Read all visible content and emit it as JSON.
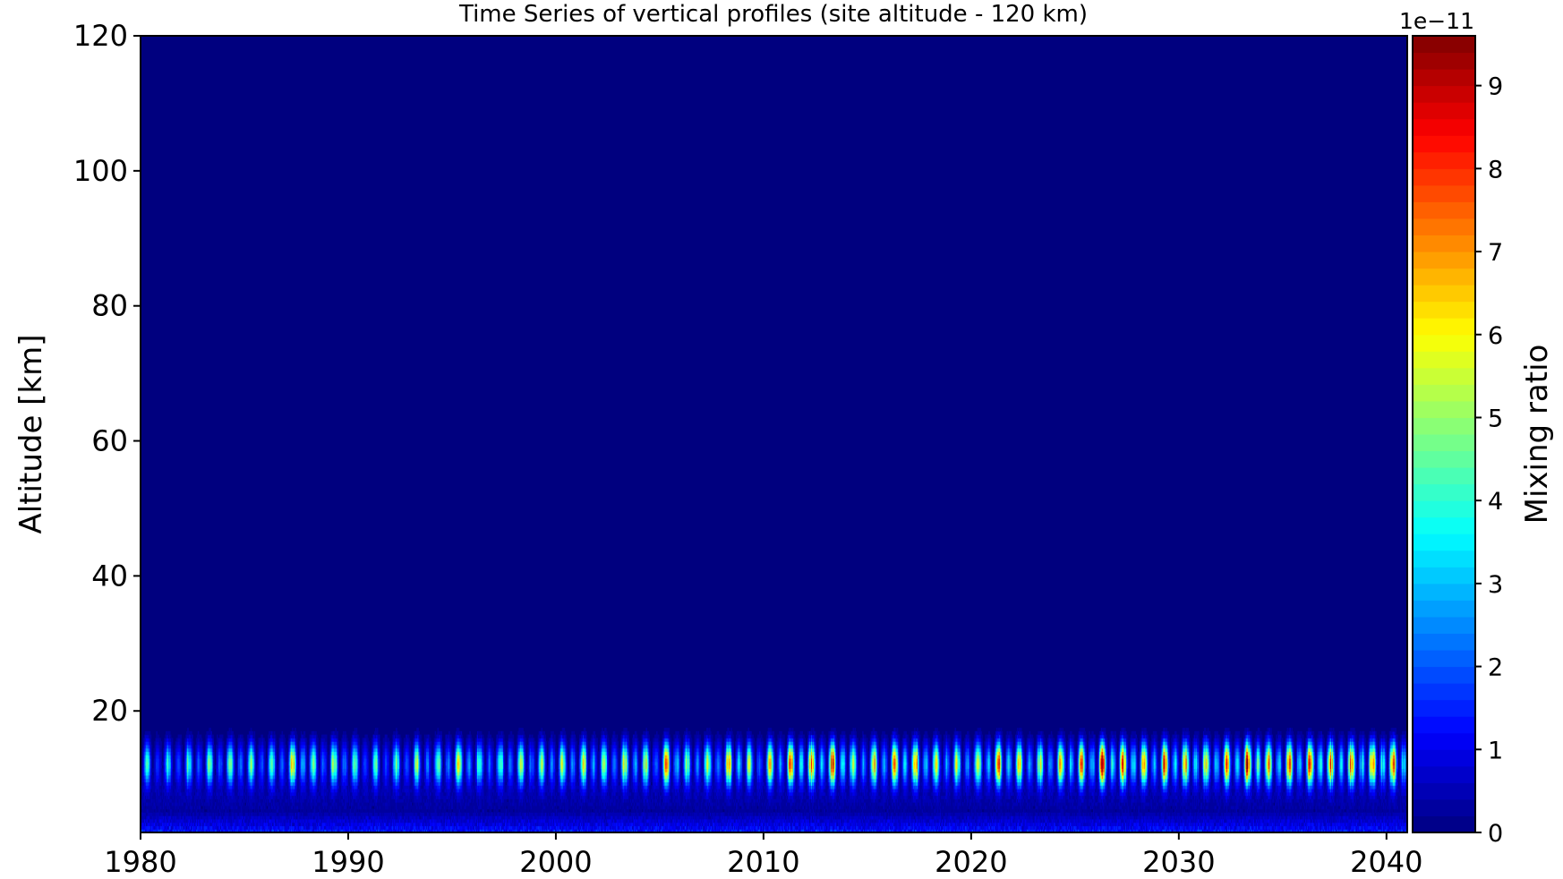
{
  "chart_data": {
    "type": "heatmap",
    "title": "Time Series of vertical profiles (site altitude - 120 km)",
    "xlabel": "",
    "ylabel": "Altitude [km]",
    "xlim": [
      1980,
      2041
    ],
    "ylim": [
      2,
      120
    ],
    "x_ticks": [
      "1980",
      "1990",
      "2000",
      "2010",
      "2020",
      "2030",
      "2040"
    ],
    "y_ticks": [
      "20",
      "40",
      "60",
      "80",
      "100",
      "120"
    ],
    "colormap": "jet",
    "colorbar": {
      "label": "Mixing ratio",
      "offset_text": "1e−11",
      "range": [
        0,
        9.6
      ],
      "ticks": [
        "0",
        "1",
        "2",
        "3",
        "4",
        "5",
        "6",
        "7",
        "8",
        "9"
      ]
    },
    "structure": {
      "signal_band_km": [
        2,
        19
      ],
      "annual_cycle": true,
      "peak_altitude_km": 12,
      "peak_yearly_max": [
        {
          "year": 1980,
          "value": 3.5
        },
        {
          "year": 1981,
          "value": 4.0
        },
        {
          "year": 1982,
          "value": 4.2
        },
        {
          "year": 1983,
          "value": 4.3
        },
        {
          "year": 1984,
          "value": 5.0
        },
        {
          "year": 1985,
          "value": 4.5
        },
        {
          "year": 1986,
          "value": 4.8
        },
        {
          "year": 1987,
          "value": 6.5
        },
        {
          "year": 1988,
          "value": 4.6
        },
        {
          "year": 1989,
          "value": 5.5
        },
        {
          "year": 1990,
          "value": 4.4
        },
        {
          "year": 1991,
          "value": 4.0
        },
        {
          "year": 1992,
          "value": 4.6
        },
        {
          "year": 1993,
          "value": 4.8
        },
        {
          "year": 1994,
          "value": 5.0
        },
        {
          "year": 1995,
          "value": 5.5
        },
        {
          "year": 1996,
          "value": 4.5
        },
        {
          "year": 1997,
          "value": 4.7
        },
        {
          "year": 1998,
          "value": 5.2
        },
        {
          "year": 1999,
          "value": 5.0
        },
        {
          "year": 2000,
          "value": 5.2
        },
        {
          "year": 2001,
          "value": 5.8
        },
        {
          "year": 2002,
          "value": 5.0
        },
        {
          "year": 2003,
          "value": 5.6
        },
        {
          "year": 2004,
          "value": 5.4
        },
        {
          "year": 2005,
          "value": 7.2
        },
        {
          "year": 2006,
          "value": 5.0
        },
        {
          "year": 2007,
          "value": 6.0
        },
        {
          "year": 2008,
          "value": 7.0
        },
        {
          "year": 2009,
          "value": 5.0
        },
        {
          "year": 2010,
          "value": 6.0
        },
        {
          "year": 2011,
          "value": 7.5
        },
        {
          "year": 2012,
          "value": 7.0
        },
        {
          "year": 2013,
          "value": 8.0
        },
        {
          "year": 2014,
          "value": 5.5
        },
        {
          "year": 2015,
          "value": 6.5
        },
        {
          "year": 2016,
          "value": 7.0
        },
        {
          "year": 2017,
          "value": 7.5
        },
        {
          "year": 2018,
          "value": 6.0
        },
        {
          "year": 2019,
          "value": 5.5
        },
        {
          "year": 2020,
          "value": 6.5
        },
        {
          "year": 2021,
          "value": 7.5
        },
        {
          "year": 2022,
          "value": 6.0
        },
        {
          "year": 2023,
          "value": 5.5
        },
        {
          "year": 2024,
          "value": 7.0
        },
        {
          "year": 2025,
          "value": 7.5
        },
        {
          "year": 2026,
          "value": 8.8
        },
        {
          "year": 2027,
          "value": 7.8
        },
        {
          "year": 2028,
          "value": 6.5
        },
        {
          "year": 2029,
          "value": 7.8
        },
        {
          "year": 2030,
          "value": 7.0
        },
        {
          "year": 2031,
          "value": 6.5
        },
        {
          "year": 2032,
          "value": 7.0
        },
        {
          "year": 2033,
          "value": 8.8
        },
        {
          "year": 2034,
          "value": 7.0
        },
        {
          "year": 2035,
          "value": 7.5
        },
        {
          "year": 2036,
          "value": 8.5
        },
        {
          "year": 2037,
          "value": 7.0
        },
        {
          "year": 2038,
          "value": 7.5
        },
        {
          "year": 2039,
          "value": 8.0
        },
        {
          "year": 2040,
          "value": 7.5
        }
      ]
    }
  }
}
